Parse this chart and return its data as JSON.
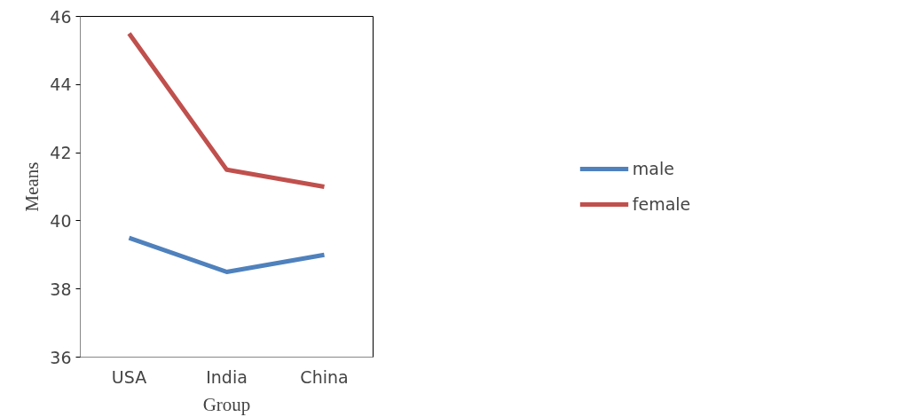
{
  "chart_data": {
    "type": "line",
    "xlabel": "Group",
    "ylabel": "Means",
    "categories": [
      "USA",
      "India",
      "China"
    ],
    "series": [
      {
        "name": "male",
        "color": "#4f81bd",
        "values": [
          39.5,
          38.5,
          39.0
        ]
      },
      {
        "name": "female",
        "color": "#c0504d",
        "values": [
          45.5,
          41.5,
          41.0
        ]
      }
    ],
    "ylim": [
      36,
      46
    ],
    "yticks": [
      36,
      38,
      40,
      42,
      44,
      46
    ],
    "grid": false,
    "legend": "right",
    "marker": "none",
    "line_style": "solid"
  }
}
